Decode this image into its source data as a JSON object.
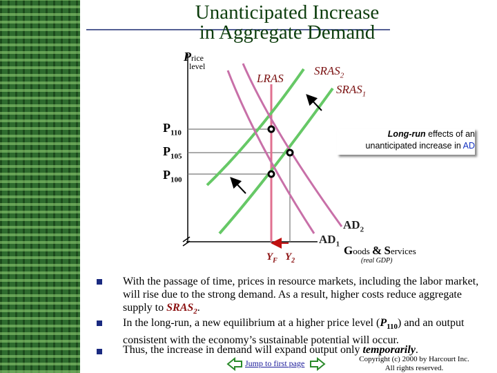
{
  "title": {
    "line1": "Unanticipated Increase",
    "line2": "in Aggregate Demand"
  },
  "diagram": {
    "y_axis": {
      "initial": "P",
      "rest": "rice",
      "second_line": "level"
    },
    "x_axis": {
      "first_initial": "G",
      "first_rest": "oods",
      "amp": "&",
      "second_initial": "S",
      "second_rest": "ervices",
      "note": "(real GDP)"
    },
    "curves": {
      "lras": "LRAS",
      "sras2": {
        "name": "SRAS",
        "sub": "2"
      },
      "sras1": {
        "name": "SRAS",
        "sub": "1"
      },
      "ad2": {
        "name": "AD",
        "sub": "2"
      },
      "ad1": {
        "name": "AD",
        "sub": "1"
      }
    },
    "price_levels": [
      {
        "name": "P",
        "sub": "110"
      },
      {
        "name": "P",
        "sub": "105"
      },
      {
        "name": "P",
        "sub": "100"
      }
    ],
    "outputs": [
      {
        "name": "Y",
        "sub": "F"
      },
      {
        "name": "Y",
        "sub": "2"
      }
    ],
    "callout": [
      {
        "text": "Long-run",
        "style": "bold-italic"
      },
      {
        "text": " effects of an unanticipated increase in ",
        "style": "plain"
      },
      {
        "text": "AD",
        "style": "blue"
      }
    ]
  },
  "bullets": [
    [
      {
        "text": "With the passage of time, prices in resource markets, including the labor market, will rise due to the strong demand. As a result, higher costs reduce aggregate supply to ",
        "style": "plain"
      },
      {
        "text": "SRAS",
        "style": "em-red"
      },
      {
        "text": "2",
        "style": "sub-red"
      },
      {
        "text": ".",
        "style": "plain"
      }
    ],
    [
      {
        "text": "In the long-run, a new equilibrium at a higher price level (",
        "style": "plain"
      },
      {
        "text": "P",
        "style": "bold-italic"
      },
      {
        "text": "110",
        "style": "sub-bold"
      },
      {
        "text": ") and an output consistent with the economy’s sustainable potential will occur.",
        "style": "plain"
      }
    ],
    [
      {
        "text": "Thus, the increase in demand will expand output only ",
        "style": "plain"
      },
      {
        "text": "temporarily",
        "style": "bold-italic"
      },
      {
        "text": ".",
        "style": "plain"
      }
    ]
  ],
  "footer": {
    "link": "Jump to first page",
    "copyright": [
      "Copyright (c) 2000 by Harcourt Inc.",
      "All rights reserved."
    ]
  }
}
